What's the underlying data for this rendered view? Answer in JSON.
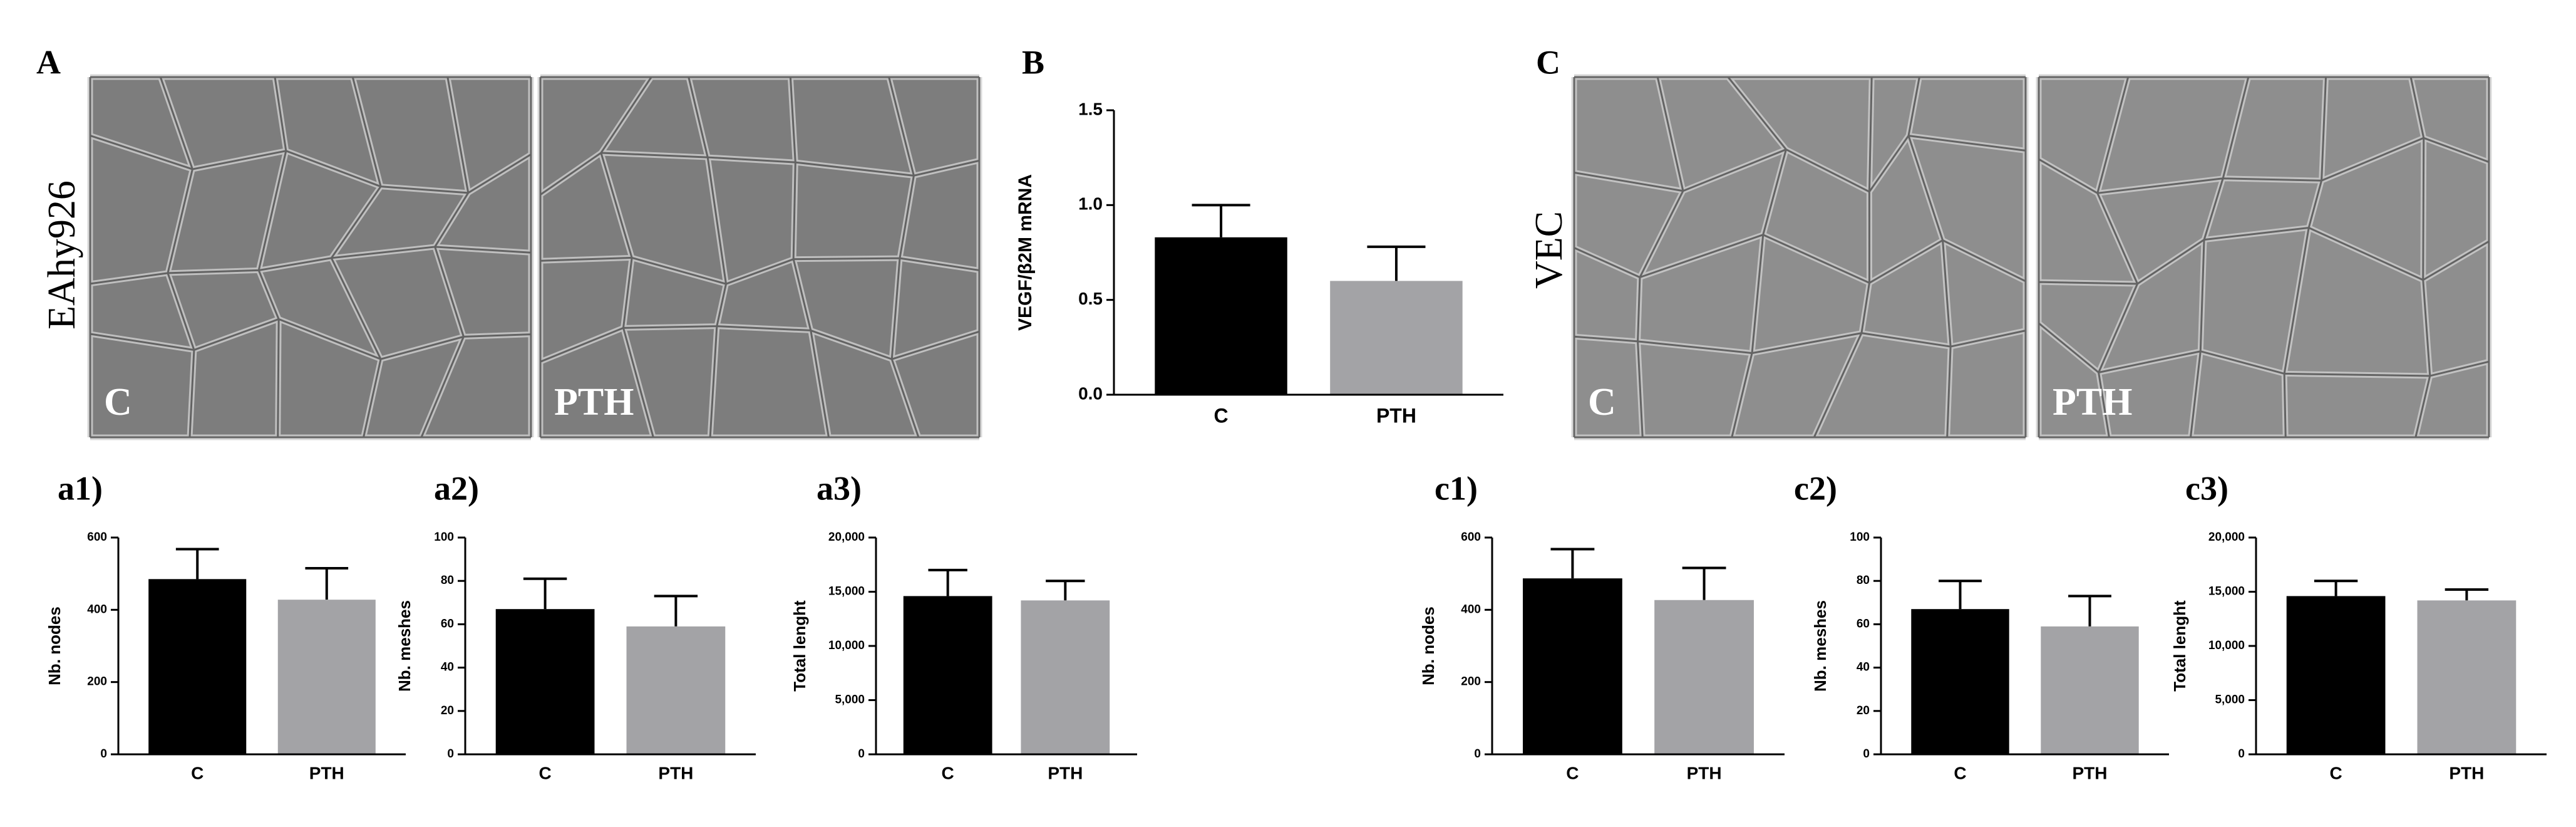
{
  "figure": {
    "panel_labels": [
      "A",
      "B",
      "C",
      "a1)",
      "a2)",
      "a3)",
      "c1)",
      "c2)",
      "c3)"
    ],
    "side_labels": [
      "EAhy926",
      "VEC"
    ],
    "micrograph_labels": [
      "C",
      "PTH",
      "C",
      "PTH"
    ]
  },
  "chart_data": [
    {
      "type": "bar",
      "ylabel": "VEGF/β2M mRNA",
      "categories": [
        "C",
        "PTH"
      ],
      "values": [
        0.83,
        0.6
      ],
      "errors": [
        0.17,
        0.18
      ],
      "colors": [
        "#000000",
        "#a3a3a6"
      ],
      "ylim": [
        0,
        1.5
      ],
      "yticks": [
        {
          "value": 0,
          "label": "0.0"
        },
        0.5,
        {
          "value": 1,
          "label": "1.0"
        },
        1.5
      ]
    },
    {
      "type": "bar",
      "ylabel": "Nb. nodes",
      "categories": [
        "C",
        "PTH"
      ],
      "values": [
        485,
        428
      ],
      "errors": [
        83,
        87
      ],
      "colors": [
        "#000000",
        "#a3a3a6"
      ],
      "ylim": [
        0,
        600
      ],
      "yticks": [
        0,
        200,
        400,
        600
      ]
    },
    {
      "type": "bar",
      "ylabel": "Nb. meshes",
      "categories": [
        "C",
        "PTH"
      ],
      "values": [
        67,
        59
      ],
      "errors": [
        14,
        14
      ],
      "colors": [
        "#000000",
        "#a3a3a6"
      ],
      "ylim": [
        0,
        100
      ],
      "yticks": [
        0,
        20,
        40,
        60,
        80,
        100
      ]
    },
    {
      "type": "bar",
      "ylabel": "Total lenght",
      "categories": [
        "C",
        "PTH"
      ],
      "values": [
        14600,
        14200
      ],
      "errors": [
        2400,
        1800
      ],
      "colors": [
        "#000000",
        "#a3a3a6"
      ],
      "ylim": [
        0,
        20000
      ],
      "yticks": [
        0,
        {
          "value": 5000,
          "label": "5,000"
        },
        {
          "value": 10000,
          "label": "10,000"
        },
        {
          "value": 15000,
          "label": "15,000"
        },
        {
          "value": 20000,
          "label": "20,000"
        }
      ]
    },
    {
      "type": "bar",
      "ylabel": "Nb. nodes",
      "categories": [
        "C",
        "PTH"
      ],
      "values": [
        487,
        427
      ],
      "errors": [
        81,
        89
      ],
      "colors": [
        "#000000",
        "#a3a3a6"
      ],
      "ylim": [
        0,
        600
      ],
      "yticks": [
        0,
        200,
        400,
        600
      ]
    },
    {
      "type": "bar",
      "ylabel": "Nb. meshes",
      "categories": [
        "C",
        "PTH"
      ],
      "values": [
        67,
        59
      ],
      "errors": [
        13,
        14
      ],
      "colors": [
        "#000000",
        "#a3a3a6"
      ],
      "ylim": [
        0,
        100
      ],
      "yticks": [
        0,
        20,
        40,
        60,
        80,
        100
      ]
    },
    {
      "type": "bar",
      "ylabel": "Total lenght",
      "categories": [
        "C",
        "PTH"
      ],
      "values": [
        14600,
        14200
      ],
      "errors": [
        1400,
        1000
      ],
      "colors": [
        "#000000",
        "#a3a3a6"
      ],
      "ylim": [
        0,
        20000
      ],
      "yticks": [
        0,
        {
          "value": 5000,
          "label": "5,000"
        },
        {
          "value": 10000,
          "label": "10,000"
        },
        {
          "value": 15000,
          "label": "15,000"
        },
        {
          "value": 20000,
          "label": "20,000"
        }
      ]
    }
  ]
}
